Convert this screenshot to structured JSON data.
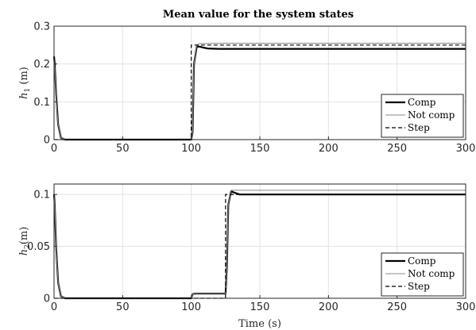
{
  "chart_data": [
    {
      "type": "line",
      "title": "Mean value for the system states",
      "xlabel": "",
      "ylabel": "h_1 (m)",
      "ylabel_main": "h",
      "ylabel_sub": "1",
      "ylabel_rest": " (m)",
      "xlim": [
        0,
        300
      ],
      "ylim": [
        0,
        0.3
      ],
      "xticks": [
        "0",
        "50",
        "100",
        "150",
        "200",
        "250",
        "300"
      ],
      "yticks": [
        "0",
        "0.1",
        "0.2",
        "0.3"
      ],
      "grid": true,
      "legend_position": "bottom-right",
      "series": [
        {
          "name": "Comp",
          "style": "solid-thick",
          "color": "#000000",
          "x": [
            0,
            0.5,
            1.5,
            3,
            5,
            8,
            100,
            101,
            102,
            104,
            106,
            108,
            112,
            120,
            300
          ],
          "y": [
            0.22,
            0.2,
            0.12,
            0.04,
            0.005,
            0.0,
            0.0,
            0.02,
            0.2,
            0.246,
            0.246,
            0.244,
            0.241,
            0.24,
            0.24
          ]
        },
        {
          "name": "Not comp",
          "style": "solid-thin",
          "color": "#888888",
          "x": [
            0,
            0.5,
            1.5,
            3,
            5,
            8,
            100,
            101,
            102,
            104,
            106,
            110,
            120,
            300
          ],
          "y": [
            0.21,
            0.19,
            0.11,
            0.04,
            0.005,
            0.0,
            0.0,
            0.02,
            0.2,
            0.25,
            0.254,
            0.254,
            0.255,
            0.255
          ]
        },
        {
          "name": "Step",
          "style": "dashed",
          "color": "#000000",
          "x": [
            0,
            100,
            100,
            300
          ],
          "y": [
            0,
            0,
            0.25,
            0.25
          ]
        }
      ]
    },
    {
      "type": "line",
      "title": "",
      "xlabel": "Time (s)",
      "ylabel": "h_2(m)",
      "ylabel_main": "h",
      "ylabel_sub": "2",
      "ylabel_rest": "(m)",
      "xlim": [
        0,
        300
      ],
      "ylim": [
        0,
        0.11
      ],
      "xticks": [
        "0",
        "50",
        "100",
        "150",
        "200",
        "250",
        "300"
      ],
      "yticks": [
        "0",
        "0.05",
        "0.1"
      ],
      "grid": true,
      "legend_position": "bottom-right",
      "series": [
        {
          "name": "Comp",
          "style": "solid-thick",
          "color": "#000000",
          "x": [
            0,
            0.5,
            1.5,
            3,
            5,
            8,
            100,
            101,
            103,
            125,
            126,
            127,
            129,
            131,
            135,
            145,
            300
          ],
          "y": [
            0.1,
            0.09,
            0.05,
            0.015,
            0.002,
            0.0,
            0.0,
            0.004,
            0.0045,
            0.0045,
            0.03,
            0.09,
            0.103,
            0.102,
            0.1,
            0.1,
            0.1
          ]
        },
        {
          "name": "Not comp",
          "style": "solid-thin",
          "color": "#888888",
          "x": [
            0,
            0.5,
            1.5,
            3,
            5,
            8,
            100,
            101,
            103,
            125,
            126,
            127,
            129,
            131,
            135,
            300
          ],
          "y": [
            0.1,
            0.09,
            0.05,
            0.015,
            0.002,
            0.0,
            0.0,
            0.004,
            0.0045,
            0.0045,
            0.03,
            0.09,
            0.104,
            0.104,
            0.104,
            0.104
          ]
        },
        {
          "name": "Step",
          "style": "dashed",
          "color": "#000000",
          "x": [
            0,
            125,
            125,
            300
          ],
          "y": [
            0,
            0,
            0.1,
            0.1
          ]
        }
      ]
    }
  ]
}
